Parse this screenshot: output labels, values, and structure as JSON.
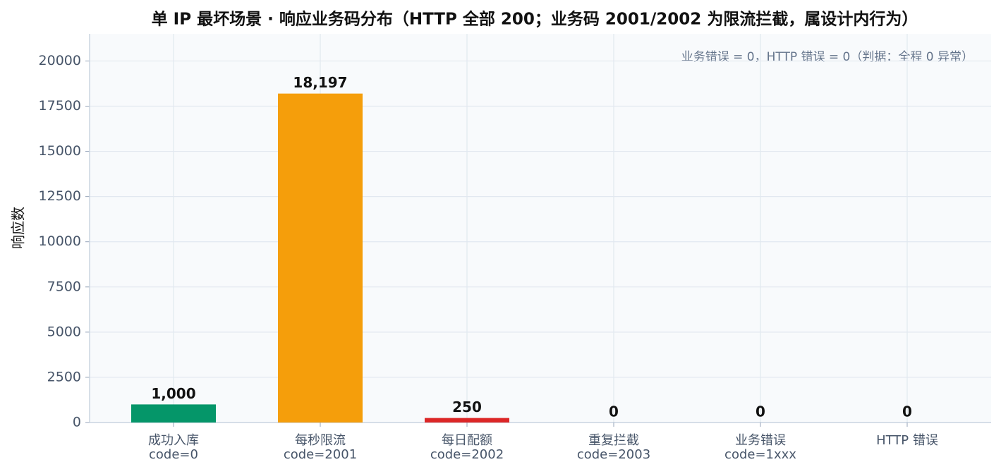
{
  "chart_data": {
    "type": "bar",
    "title": "单 IP 最坏场景 · 响应业务码分布（HTTP 全部 200；业务码 2001/2002 为限流拦截，属设计内行为）",
    "y_label": "响应数",
    "annotation": "业务错误 = 0，HTTP 错误 = 0（判据：全程 0 异常）",
    "categories": [
      [
        "成功入库",
        "code=0"
      ],
      [
        "每秒限流",
        "code=2001"
      ],
      [
        "每日配额",
        "code=2002"
      ],
      [
        "重复拦截",
        "code=2003"
      ],
      [
        "业务错误",
        "code=1xxx"
      ],
      [
        "HTTP 错误"
      ]
    ],
    "values": [
      1000,
      18197,
      250,
      0,
      0,
      0
    ],
    "value_labels": [
      "1,000",
      "18,197",
      "250",
      "0",
      "0",
      "0"
    ],
    "colors": [
      "#059669",
      "#f59e0b",
      "#dc2626",
      "#6366f1",
      "#64748b",
      "#7c3aed"
    ],
    "ylim": [
      0,
      21500
    ],
    "yticks": [
      0,
      2500,
      5000,
      7500,
      10000,
      12500,
      15000,
      17500,
      20000
    ],
    "grid": true
  }
}
